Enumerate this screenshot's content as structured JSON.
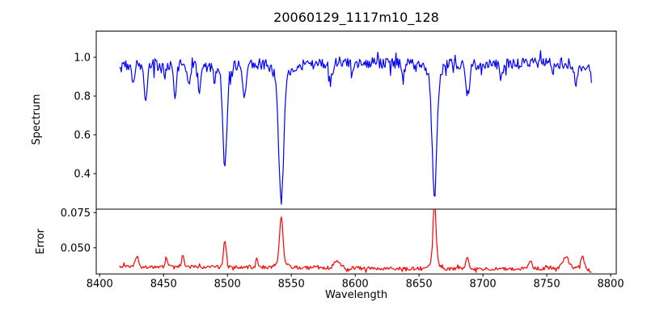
{
  "figure": {
    "title": "20060129_1117m10_128",
    "xlabel": "Wavelength",
    "ylabel_top": "Spectrum",
    "ylabel_bottom": "Error",
    "background_color": "#ffffff",
    "spine_color": "#000000",
    "text_color": "#000000"
  },
  "chart_data": {
    "type": "line",
    "title": "20060129_1117m10_128",
    "xlabel": "Wavelength",
    "grid": false,
    "legend": "none",
    "xlim": [
      8397.3,
      8804.4
    ],
    "xticks": [
      8400,
      8450,
      8500,
      8550,
      8600,
      8650,
      8700,
      8750,
      8800
    ],
    "xtick_labels": [
      "8400",
      "8450",
      "8500",
      "8550",
      "8600",
      "8650",
      "8700",
      "8750",
      "8800"
    ],
    "x_data_range": [
      8415.5,
      8785
    ],
    "subplots": [
      {
        "name": "spectrum",
        "ylabel": "Spectrum",
        "line_color": "#0000ff",
        "ylim": [
          0.2167,
          1.1354
        ],
        "yticks": [
          0.4,
          0.6,
          0.8,
          1.0
        ],
        "ytick_labels": [
          "0.4",
          "0.6",
          "0.8",
          "1.0"
        ],
        "continuum_level": 0.965,
        "noise_amplitude": 0.028,
        "baseline": [
          [
            8415.5,
            0.95
          ],
          [
            8425,
            0.962
          ],
          [
            8445,
            0.965
          ],
          [
            8465,
            0.96
          ],
          [
            8487,
            0.952
          ],
          [
            8510,
            0.962
          ],
          [
            8530,
            0.968
          ],
          [
            8556,
            0.96
          ],
          [
            8575,
            0.968
          ],
          [
            8600,
            0.972
          ],
          [
            8625,
            0.97
          ],
          [
            8650,
            0.965
          ],
          [
            8675,
            0.968
          ],
          [
            8700,
            0.962
          ],
          [
            8725,
            0.965
          ],
          [
            8750,
            0.972
          ],
          [
            8770,
            0.965
          ],
          [
            8783,
            0.945
          ],
          [
            8785,
            0.885
          ]
        ],
        "features": [
          {
            "c": 8426.0,
            "v": 0.87,
            "s": 1.1
          },
          {
            "c": 8436.0,
            "v": 0.79,
            "s": 1.4
          },
          {
            "c": 8451.0,
            "v": 0.91,
            "s": 0.9
          },
          {
            "c": 8459.0,
            "v": 0.81,
            "s": 1.2
          },
          {
            "c": 8470.0,
            "v": 0.86,
            "s": 1.1
          },
          {
            "c": 8478.0,
            "v": 0.84,
            "s": 1.3
          },
          {
            "c": 8490.0,
            "v": 0.89,
            "s": 1.1
          },
          {
            "c": 8498.0,
            "v": 0.47,
            "s": 1.6
          },
          {
            "c": 8498.0,
            "v": 0.93,
            "s": 4.0
          },
          {
            "c": 8513.0,
            "v": 0.8,
            "s": 1.5
          },
          {
            "c": 8542.1,
            "v": 0.34,
            "s": 1.9
          },
          {
            "c": 8542.1,
            "v": 0.885,
            "s": 5.0
          },
          {
            "c": 8580.5,
            "v": 0.87,
            "s": 1.4
          },
          {
            "c": 8598.0,
            "v": 0.92,
            "s": 1.0
          },
          {
            "c": 8637.0,
            "v": 0.9,
            "s": 1.2
          },
          {
            "c": 8662.1,
            "v": 0.35,
            "s": 1.8
          },
          {
            "c": 8662.1,
            "v": 0.9,
            "s": 4.5
          },
          {
            "c": 8688.0,
            "v": 0.78,
            "s": 1.5
          },
          {
            "c": 8714.0,
            "v": 0.9,
            "s": 1.1
          },
          {
            "c": 8773.0,
            "v": 0.86,
            "s": 1.4
          }
        ]
      },
      {
        "name": "error",
        "ylabel": "Error",
        "line_color": "#ff0000",
        "ylim": [
          0.0314,
          0.0775
        ],
        "yticks": [
          0.05,
          0.075
        ],
        "ytick_labels": [
          "0.050",
          "0.075"
        ],
        "continuum_level": 0.036,
        "noise_amplitude": 0.0012,
        "baseline": [
          [
            8415.5,
            0.0363
          ],
          [
            8450,
            0.0366
          ],
          [
            8500,
            0.0362
          ],
          [
            8540,
            0.0362
          ],
          [
            8560,
            0.0358
          ],
          [
            8600,
            0.0355
          ],
          [
            8640,
            0.0352
          ],
          [
            8680,
            0.035
          ],
          [
            8720,
            0.035
          ],
          [
            8745,
            0.0352
          ],
          [
            8760,
            0.036
          ],
          [
            8775,
            0.0355
          ],
          [
            8782,
            0.0342
          ],
          [
            8785,
            0.0336
          ]
        ],
        "features": [
          {
            "c": 8429.0,
            "v": 0.0445,
            "s": 1.2
          },
          {
            "c": 8452.0,
            "v": 0.0425,
            "s": 0.9
          },
          {
            "c": 8465.0,
            "v": 0.0437,
            "s": 1.0
          },
          {
            "c": 8498.0,
            "v": 0.0555,
            "s": 1.1
          },
          {
            "c": 8523.0,
            "v": 0.0437,
            "s": 0.7
          },
          {
            "c": 8542.1,
            "v": 0.0675,
            "s": 1.3
          },
          {
            "c": 8542.1,
            "v": 0.041,
            "s": 3.5
          },
          {
            "c": 8586.0,
            "v": 0.0405,
            "s": 2.5
          },
          {
            "c": 8662.1,
            "v": 0.0757,
            "s": 1.1
          },
          {
            "c": 8662.1,
            "v": 0.043,
            "s": 2.8
          },
          {
            "c": 8688.0,
            "v": 0.0428,
            "s": 1.1
          },
          {
            "c": 8737.0,
            "v": 0.0395,
            "s": 1.5
          },
          {
            "c": 8765.0,
            "v": 0.0437,
            "s": 2.2
          },
          {
            "c": 8778.0,
            "v": 0.0438,
            "s": 1.4
          }
        ]
      }
    ]
  }
}
